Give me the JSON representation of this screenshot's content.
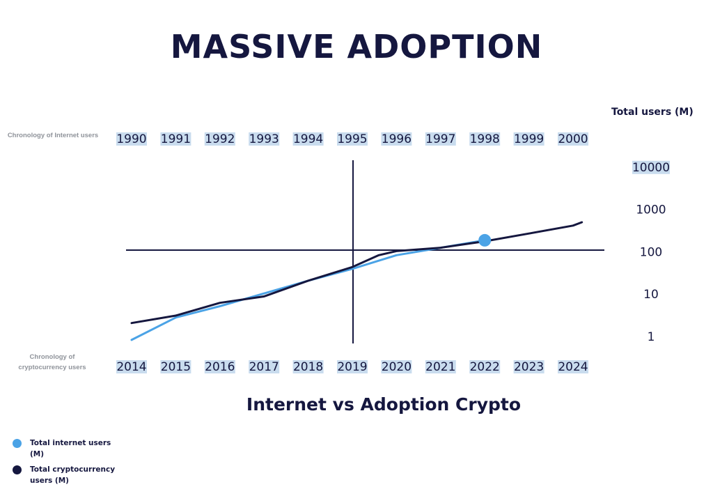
{
  "title": "MASSIVE ADOPTION",
  "subtitle": "Internet vs  Adoption Crypto",
  "top_axis_label": "Chronology of Internet users",
  "bottom_axis_label": "Chronology of cryptocurrency users",
  "y_axis_title": "Total users (M)",
  "legend": [
    {
      "label": "Total internet users (M)",
      "color": "#4ba3e6"
    },
    {
      "label": "Total cryptocurrency users (M)",
      "color": "#15173f"
    }
  ],
  "colors": {
    "internet": "#4ba3e6",
    "crypto": "#15173f",
    "highlight": "#c9dcee",
    "axis": "#15173f"
  },
  "chart_data": {
    "type": "line",
    "title": "MASSIVE ADOPTION",
    "subtitle": "Internet vs  Adoption Crypto",
    "ylabel": "Total users (M)",
    "y_scale": "log",
    "y_ticks": [
      "10000",
      "1000",
      "100",
      "10",
      "1"
    ],
    "ylim": [
      0.8,
      10000
    ],
    "x_top": {
      "label": "Chronology of Internet users",
      "ticks": [
        "1990",
        "1991",
        "1992",
        "1993",
        "1994",
        "1995",
        "1996",
        "1997",
        "1998",
        "1999",
        "2000"
      ]
    },
    "x_bottom": {
      "label": "Chronology of cryptocurrency users",
      "ticks": [
        "2014",
        "2015",
        "2016",
        "2017",
        "2018",
        "2019",
        "2020",
        "2021",
        "2022",
        "2023",
        "2024"
      ]
    },
    "grid": false,
    "legend_position": "bottom-left",
    "series": [
      {
        "name": "Total internet users (M)",
        "axis": "top",
        "x": [
          1990,
          1991,
          1992,
          1993,
          1994,
          1995,
          1996,
          1997,
          1998
        ],
        "y": [
          0.8,
          2.7,
          5,
          10,
          20,
          38,
          80,
          120,
          180
        ]
      },
      {
        "name": "Total cryptocurrency users (M)",
        "axis": "bottom",
        "x": [
          2014,
          2015,
          2016,
          2017,
          2018,
          2019,
          2019.6,
          2020,
          2021,
          2022,
          2023,
          2024,
          2024.2
        ],
        "y": [
          2,
          3,
          6,
          8.5,
          20,
          42,
          80,
          100,
          120,
          170,
          260,
          400,
          480
        ]
      }
    ],
    "highlight_point": {
      "series": "Total internet users (M)",
      "x": 1998,
      "y": 180
    }
  }
}
